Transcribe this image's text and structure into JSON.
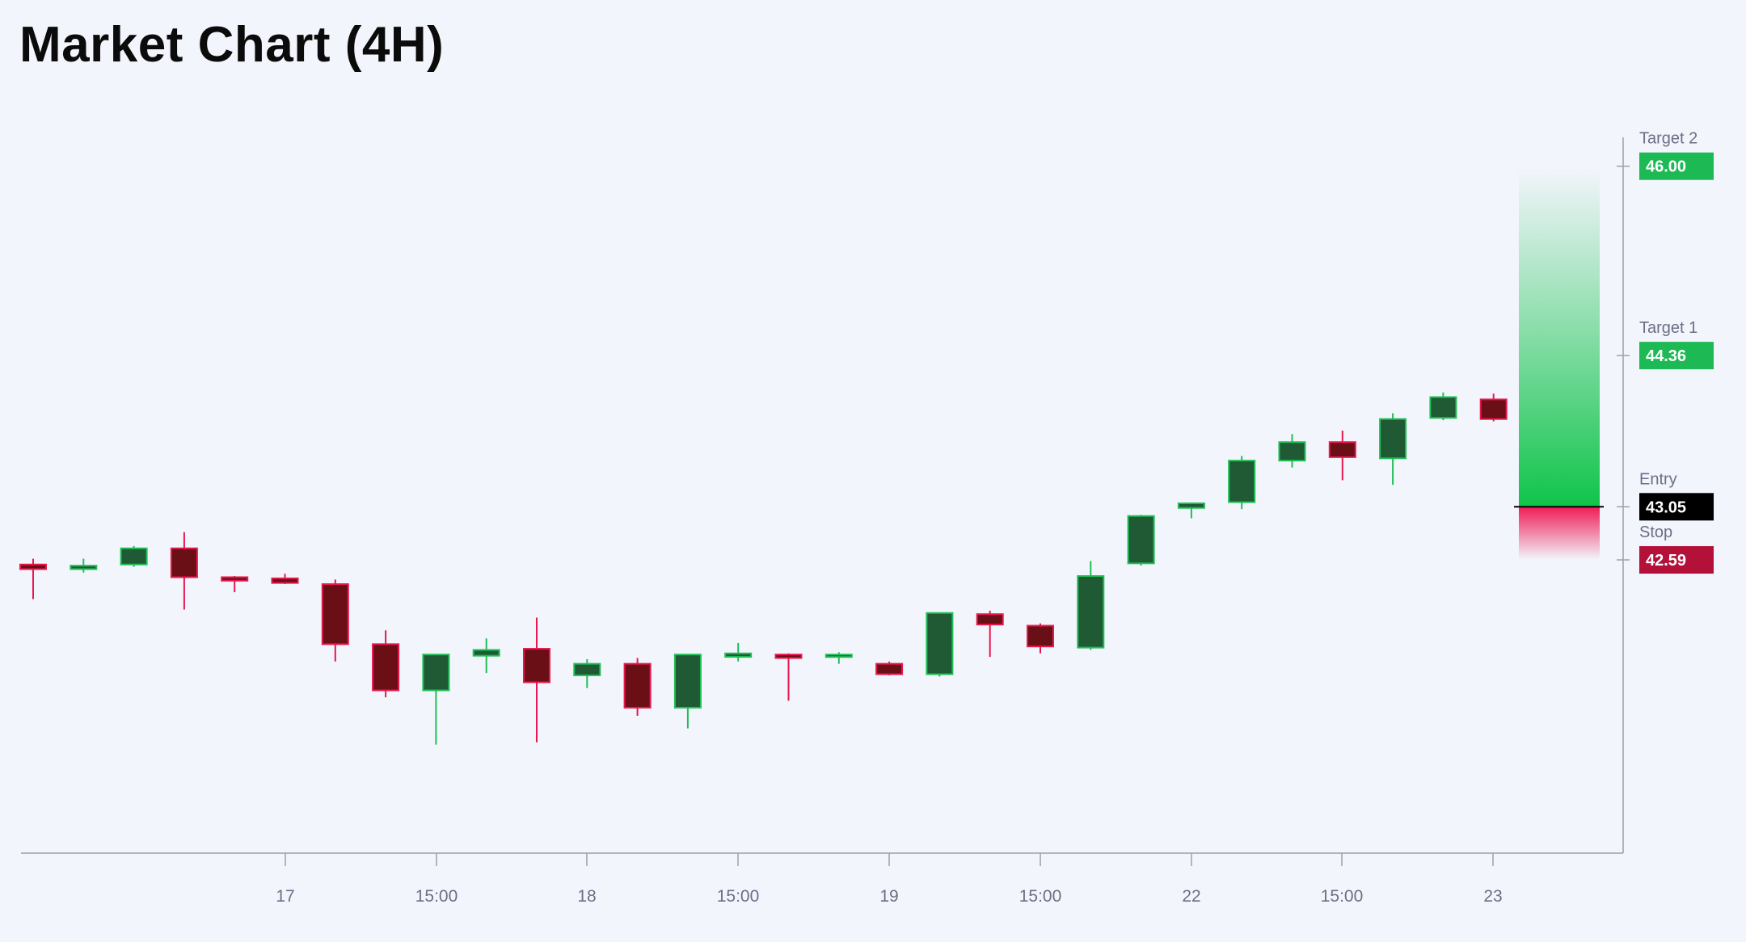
{
  "title": "Market Chart (4H)",
  "colors": {
    "background": "#f3f5fc",
    "up_body": "#1f5a35",
    "up_wick": "#1fbf55",
    "down_body": "#6b0f16",
    "down_wick": "#e8174e",
    "axis": "#9aa0ad",
    "target_label": "#1db954",
    "entry_label": "#000000",
    "stop_label": "#b3103a"
  },
  "chart_data": {
    "type": "candlestick",
    "x_tick_labels": [
      "17",
      "15:00",
      "18",
      "15:00",
      "19",
      "15:00",
      "22",
      "15:00",
      "23"
    ],
    "ylim": [
      40.05,
      46.25
    ],
    "candles": [
      {
        "o": 42.55,
        "h": 42.6,
        "l": 42.25,
        "c": 42.51
      },
      {
        "o": 42.51,
        "h": 42.6,
        "l": 42.48,
        "c": 42.54
      },
      {
        "o": 42.55,
        "h": 42.71,
        "l": 42.53,
        "c": 42.69
      },
      {
        "o": 42.69,
        "h": 42.83,
        "l": 42.16,
        "c": 42.44
      },
      {
        "o": 42.44,
        "h": 42.45,
        "l": 42.31,
        "c": 42.41
      },
      {
        "o": 42.43,
        "h": 42.47,
        "l": 42.38,
        "c": 42.39
      },
      {
        "o": 42.38,
        "h": 42.42,
        "l": 41.71,
        "c": 41.86
      },
      {
        "o": 41.86,
        "h": 41.98,
        "l": 41.4,
        "c": 41.46
      },
      {
        "o": 41.46,
        "h": 41.77,
        "l": 40.99,
        "c": 41.77
      },
      {
        "o": 41.76,
        "h": 41.91,
        "l": 41.61,
        "c": 41.81
      },
      {
        "o": 41.82,
        "h": 42.09,
        "l": 41.01,
        "c": 41.53
      },
      {
        "o": 41.59,
        "h": 41.73,
        "l": 41.48,
        "c": 41.69
      },
      {
        "o": 41.69,
        "h": 41.74,
        "l": 41.24,
        "c": 41.31
      },
      {
        "o": 41.31,
        "h": 41.72,
        "l": 41.13,
        "c": 41.77
      },
      {
        "o": 41.75,
        "h": 41.87,
        "l": 41.71,
        "c": 41.78
      },
      {
        "o": 41.77,
        "h": 41.78,
        "l": 41.37,
        "c": 41.74
      },
      {
        "o": 41.75,
        "h": 41.79,
        "l": 41.69,
        "c": 41.77
      },
      {
        "o": 41.69,
        "h": 41.71,
        "l": 41.59,
        "c": 41.6
      },
      {
        "o": 41.6,
        "h": 42.12,
        "l": 41.58,
        "c": 42.13
      },
      {
        "o": 42.12,
        "h": 42.15,
        "l": 41.75,
        "c": 42.03
      },
      {
        "o": 42.02,
        "h": 42.04,
        "l": 41.78,
        "c": 41.84
      },
      {
        "o": 41.83,
        "h": 42.58,
        "l": 41.81,
        "c": 42.45
      },
      {
        "o": 42.56,
        "h": 42.98,
        "l": 42.54,
        "c": 42.97
      },
      {
        "o": 43.04,
        "h": 43.08,
        "l": 42.95,
        "c": 43.08
      },
      {
        "o": 43.09,
        "h": 43.49,
        "l": 43.03,
        "c": 43.45
      },
      {
        "o": 43.45,
        "h": 43.68,
        "l": 43.39,
        "c": 43.61
      },
      {
        "o": 43.61,
        "h": 43.71,
        "l": 43.28,
        "c": 43.48
      },
      {
        "o": 43.47,
        "h": 43.86,
        "l": 43.24,
        "c": 43.81
      },
      {
        "o": 43.82,
        "h": 44.04,
        "l": 43.8,
        "c": 44.0
      },
      {
        "o": 43.98,
        "h": 44.03,
        "l": 43.79,
        "c": 43.81
      }
    ],
    "levels": [
      {
        "name": "Target 2",
        "value": "46.00",
        "type": "target"
      },
      {
        "name": "Target 1",
        "value": "44.36",
        "type": "target"
      },
      {
        "name": "Entry",
        "value": "43.05",
        "type": "entry"
      },
      {
        "name": "Stop",
        "value": "42.59",
        "type": "stop"
      }
    ],
    "grid": false,
    "y_axis_position": "right"
  }
}
